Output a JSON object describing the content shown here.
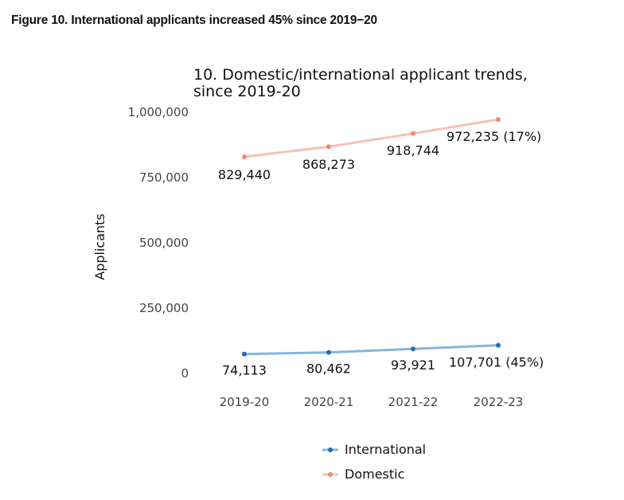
{
  "figure_title": "Figure 10. International applicants increased 45% since 2019−20",
  "chart_data": {
    "type": "line",
    "title_lines": [
      "10. Domestic/international applicant trends,",
      "since 2019-20"
    ],
    "xlabel": "",
    "ylabel": "Applicants",
    "categories": [
      "2019-20",
      "2020-21",
      "2021-22",
      "2022-23"
    ],
    "yticks": [
      0,
      250000,
      500000,
      750000,
      1000000
    ],
    "ytick_labels": [
      "0",
      "250,000",
      "500,000",
      "750,000",
      "1,000,000"
    ],
    "ylim": [
      0,
      1000000
    ],
    "grid": false,
    "legend_position": "bottom",
    "series": [
      {
        "name": "International",
        "color": "#1f6fb4",
        "line_color": "#86b6dd",
        "values": [
          74113,
          80462,
          93921,
          107701
        ],
        "labels": [
          "74,113",
          "80,462",
          "93,921",
          "107,701 (45%)"
        ]
      },
      {
        "name": "Domestic",
        "color": "#f08a6e",
        "line_color": "#f7c2b2",
        "values": [
          829440,
          868273,
          918744,
          972235
        ],
        "labels": [
          "829,440",
          "868,273",
          "918,744",
          "972,235 (17%)"
        ]
      }
    ]
  }
}
